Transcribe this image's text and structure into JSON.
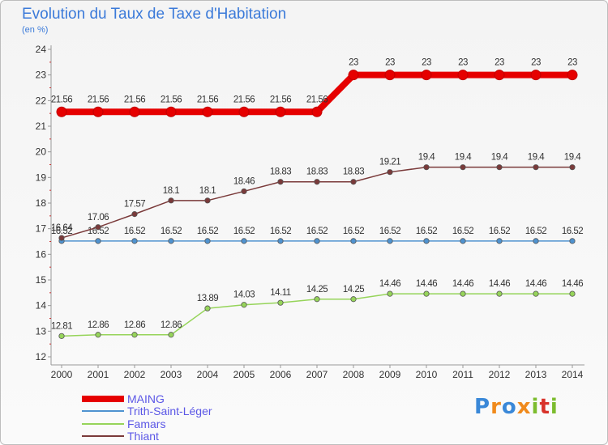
{
  "chart_data": {
    "type": "line",
    "title": "Evolution du Taux de Taxe d'Habitation",
    "ylabel": "(en %)",
    "xlabel": "",
    "categories": [
      "2000",
      "2001",
      "2002",
      "2003",
      "2004",
      "2005",
      "2006",
      "2007",
      "2008",
      "2009",
      "2010",
      "2011",
      "2012",
      "2013",
      "2014"
    ],
    "ylim": [
      12,
      24
    ],
    "yticks": [
      "12",
      "13",
      "14",
      "15",
      "16",
      "17",
      "18",
      "19",
      "20",
      "21",
      "22",
      "23",
      "24"
    ],
    "series": [
      {
        "name": "MAING",
        "color": "#e60000",
        "values": [
          21.56,
          21.56,
          21.56,
          21.56,
          21.56,
          21.56,
          21.56,
          21.56,
          23,
          23,
          23,
          23,
          23,
          23,
          23
        ],
        "labels": [
          "21.56",
          "21.56",
          "21.56",
          "21.56",
          "21.56",
          "21.56",
          "21.56",
          "21.56",
          "23",
          "23",
          "23",
          "23",
          "23",
          "23",
          "23"
        ]
      },
      {
        "name": "Trith-Saint-Léger",
        "color": "#4f93d0",
        "values": [
          16.52,
          16.52,
          16.52,
          16.52,
          16.52,
          16.52,
          16.52,
          16.52,
          16.52,
          16.52,
          16.52,
          16.52,
          16.52,
          16.52,
          16.52
        ],
        "labels": [
          "16.52",
          "16.52",
          "16.52",
          "16.52",
          "16.52",
          "16.52",
          "16.52",
          "16.52",
          "16.52",
          "16.52",
          "16.52",
          "16.52",
          "16.52",
          "16.52",
          "16.52"
        ]
      },
      {
        "name": "Famars",
        "color": "#96d45a",
        "values": [
          12.81,
          12.86,
          12.86,
          12.86,
          13.89,
          14.03,
          14.11,
          14.25,
          14.25,
          14.46,
          14.46,
          14.46,
          14.46,
          14.46,
          14.46
        ],
        "labels": [
          "12.81",
          "12.86",
          "12.86",
          "12.86",
          "13.89",
          "14.03",
          "14.11",
          "14.25",
          "14.25",
          "14.46",
          "14.46",
          "14.46",
          "14.46",
          "14.46",
          "14.46"
        ]
      },
      {
        "name": "Thiant",
        "color": "#7a3a3a",
        "values": [
          16.64,
          17.06,
          17.57,
          18.1,
          18.1,
          18.46,
          18.83,
          18.83,
          18.83,
          19.21,
          19.4,
          19.4,
          19.4,
          19.4,
          19.4
        ],
        "labels": [
          "16.64",
          "17.06",
          "17.57",
          "18.1",
          "18.1",
          "18.46",
          "18.83",
          "18.83",
          "18.83",
          "19.21",
          "19.4",
          "19.4",
          "19.4",
          "19.4",
          "19.4"
        ]
      }
    ],
    "grid": false,
    "legend_position": "bottom-left"
  },
  "logo": {
    "letters": [
      "P",
      "r",
      "o",
      "x",
      "i",
      "t",
      "i"
    ],
    "colors": [
      "#3a88d8",
      "#f08a1c",
      "#3a88d8",
      "#f08a1c",
      "#7cbc2e",
      "#d8322a",
      "#7cbc2e"
    ]
  }
}
